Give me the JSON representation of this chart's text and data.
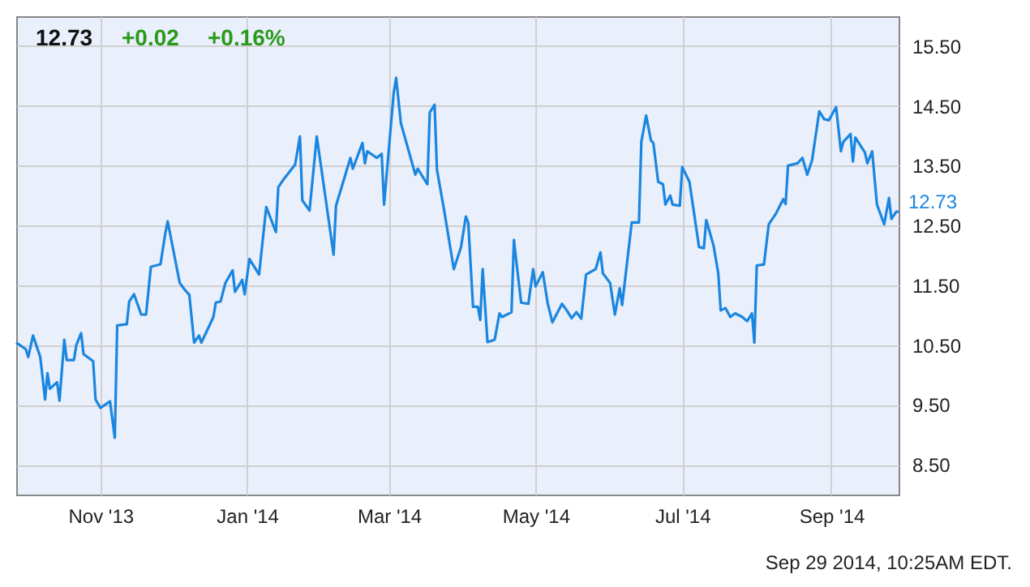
{
  "chart_data": {
    "type": "line",
    "annotations": [
      "12.73",
      "+0.02",
      "+0.16%",
      {
        "text": "12.73",
        "x": "2014-09-29",
        "y": 12.73
      },
      "Sep 29 2014, 10:25AM EDT."
    ],
    "x": [
      "2013-09-27",
      "2013-10-01",
      "2013-10-02",
      "2013-10-04",
      "2013-10-07",
      "2013-10-09",
      "2013-10-10",
      "2013-10-11",
      "2013-10-14",
      "2013-10-15",
      "2013-10-17",
      "2013-10-18",
      "2013-10-21",
      "2013-10-22",
      "2013-10-24",
      "2013-10-25",
      "2013-10-29",
      "2013-10-30",
      "2013-11-01",
      "2013-11-05",
      "2013-11-07",
      "2013-11-08",
      "2013-11-12",
      "2013-11-13",
      "2013-11-15",
      "2013-11-18",
      "2013-11-20",
      "2013-11-22",
      "2013-11-26",
      "2013-11-28",
      "2013-11-29",
      "2013-12-04",
      "2013-12-06",
      "2013-12-08",
      "2013-12-10",
      "2013-12-12",
      "2013-12-13",
      "2013-12-18",
      "2013-12-19",
      "2013-12-21",
      "2013-12-23",
      "2013-12-26",
      "2013-12-27",
      "2013-12-30",
      "2013-12-31",
      "2014-01-02",
      "2014-01-06",
      "2014-01-09",
      "2014-01-13",
      "2014-01-14",
      "2014-01-16",
      "2014-01-21",
      "2014-01-23",
      "2014-01-24",
      "2014-01-27",
      "2014-01-30",
      "2014-02-03",
      "2014-02-06",
      "2014-02-07",
      "2014-02-13",
      "2014-02-14",
      "2014-02-18",
      "2014-02-19",
      "2014-02-20",
      "2014-02-24",
      "2014-02-26",
      "2014-02-27",
      "2014-03-03",
      "2014-03-04",
      "2014-03-06",
      "2014-03-12",
      "2014-03-13",
      "2014-03-17",
      "2014-03-18",
      "2014-03-20",
      "2014-03-21",
      "2014-03-24",
      "2014-03-26",
      "2014-03-28",
      "2014-03-31",
      "2014-04-02",
      "2014-04-03",
      "2014-04-05",
      "2014-04-07",
      "2014-04-08",
      "2014-04-09",
      "2014-04-11",
      "2014-04-14",
      "2014-04-16",
      "2014-04-17",
      "2014-04-21",
      "2014-04-22",
      "2014-04-23",
      "2014-04-25",
      "2014-04-28",
      "2014-04-30",
      "2014-05-01",
      "2014-05-04",
      "2014-05-06",
      "2014-05-08",
      "2014-05-12",
      "2014-05-14",
      "2014-05-16",
      "2014-05-18",
      "2014-05-20",
      "2014-05-22",
      "2014-05-26",
      "2014-05-28",
      "2014-05-29",
      "2014-06-01",
      "2014-06-03",
      "2014-06-05",
      "2014-06-06",
      "2014-06-10",
      "2014-06-13",
      "2014-06-14",
      "2014-06-16",
      "2014-06-18",
      "2014-06-19",
      "2014-06-21",
      "2014-06-23",
      "2014-06-24",
      "2014-06-26",
      "2014-06-27",
      "2014-06-30",
      "2014-07-01",
      "2014-07-04",
      "2014-07-08",
      "2014-07-10",
      "2014-07-11",
      "2014-07-14",
      "2014-07-16",
      "2014-07-17",
      "2014-07-19",
      "2014-07-21",
      "2014-07-23",
      "2014-07-26",
      "2014-07-28",
      "2014-07-30",
      "2014-07-31",
      "2014-08-01",
      "2014-08-04",
      "2014-08-06",
      "2014-08-09",
      "2014-08-12",
      "2014-08-13",
      "2014-08-14",
      "2014-08-18",
      "2014-08-20",
      "2014-08-22",
      "2014-08-24",
      "2014-08-27",
      "2014-08-29",
      "2014-08-31",
      "2014-09-03",
      "2014-09-05",
      "2014-09-06",
      "2014-09-09",
      "2014-09-10",
      "2014-09-11",
      "2014-09-15",
      "2014-09-16",
      "2014-09-18",
      "2014-09-20",
      "2014-09-23",
      "2014-09-25",
      "2014-09-26",
      "2014-09-28",
      "2014-09-29"
    ],
    "series": [
      {
        "color": "#1a86e0",
        "values": [
          10.54,
          10.43,
          10.3,
          10.66,
          10.3,
          9.59,
          10.03,
          9.77,
          9.88,
          9.57,
          10.59,
          10.25,
          10.25,
          10.5,
          10.7,
          10.35,
          10.23,
          9.59,
          9.45,
          9.56,
          8.95,
          10.83,
          10.85,
          11.23,
          11.35,
          11.01,
          11.01,
          11.81,
          11.85,
          12.37,
          12.57,
          11.54,
          11.43,
          11.34,
          10.54,
          10.66,
          10.54,
          10.97,
          11.21,
          11.23,
          11.54,
          11.75,
          11.39,
          11.59,
          11.35,
          11.94,
          11.68,
          12.81,
          12.39,
          13.14,
          13.26,
          13.52,
          13.99,
          12.92,
          12.75,
          13.99,
          12.86,
          12.01,
          12.83,
          13.63,
          13.45,
          13.88,
          13.54,
          13.74,
          13.63,
          13.7,
          12.85,
          14.72,
          14.97,
          14.21,
          13.35,
          13.45,
          13.19,
          14.39,
          14.52,
          13.43,
          12.75,
          12.26,
          11.77,
          12.14,
          12.65,
          12.55,
          11.14,
          11.14,
          10.92,
          11.77,
          10.55,
          10.59,
          11.03,
          10.97,
          11.05,
          12.26,
          11.9,
          11.21,
          11.19,
          11.77,
          11.48,
          11.72,
          11.21,
          10.88,
          11.19,
          11.08,
          10.95,
          11.05,
          10.94,
          11.68,
          11.77,
          12.05,
          11.7,
          11.54,
          11.01,
          11.45,
          11.17,
          12.55,
          12.55,
          13.9,
          14.34,
          13.92,
          13.88,
          13.23,
          13.19,
          12.85,
          13.0,
          12.85,
          12.83,
          13.48,
          13.23,
          12.14,
          12.12,
          12.59,
          12.17,
          11.7,
          11.08,
          11.12,
          10.97,
          11.03,
          10.97,
          10.9,
          11.03,
          10.54,
          11.83,
          11.85,
          12.52,
          12.7,
          12.94,
          12.86,
          13.5,
          13.54,
          13.63,
          13.35,
          13.59,
          14.41,
          14.28,
          14.26,
          14.48,
          13.74,
          13.9,
          14.03,
          13.57,
          13.97,
          13.72,
          13.54,
          13.74,
          12.85,
          12.52,
          12.96,
          12.61,
          12.73,
          12.73
        ]
      }
    ],
    "xlim": [
      "2013-09-27",
      "2014-09-29"
    ],
    "xticks": [
      {
        "value": "2013-11-01",
        "label": "Nov '13"
      },
      {
        "value": "2014-01-01",
        "label": "Jan '14"
      },
      {
        "value": "2014-03-01",
        "label": "Mar '14"
      },
      {
        "value": "2014-05-01",
        "label": "May '14"
      },
      {
        "value": "2014-07-01",
        "label": "Jul '14"
      },
      {
        "value": "2014-09-01",
        "label": "Sep '14"
      }
    ],
    "ylim": [
      8,
      16
    ],
    "yticks": [
      {
        "value": 8.5,
        "label": "8.50"
      },
      {
        "value": 9.5,
        "label": "9.50"
      },
      {
        "value": 10.5,
        "label": "10.50"
      },
      {
        "value": 11.5,
        "label": "11.50"
      },
      {
        "value": 12.5,
        "label": "12.50"
      },
      {
        "value": 13.5,
        "label": "13.50"
      },
      {
        "value": 14.5,
        "label": "14.50"
      },
      {
        "value": 15.5,
        "label": "15.50"
      }
    ],
    "grid": true,
    "line_style": "solid",
    "marker": "none"
  }
}
